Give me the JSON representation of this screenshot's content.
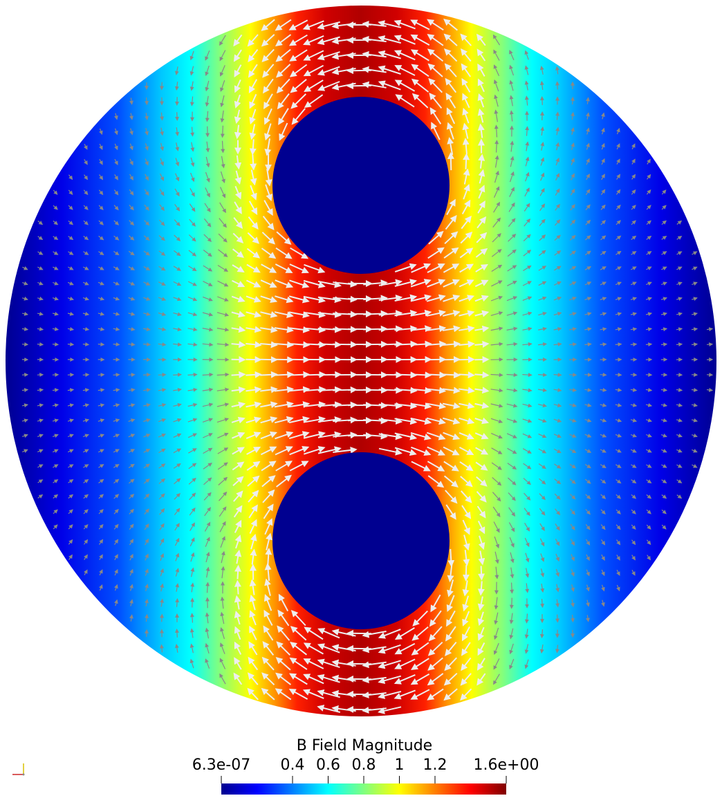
{
  "colorbar": {
    "title": "B Field Magnitude",
    "min_label": "6.3e-07",
    "max_label": "1.6e+00",
    "min_value": 6.3e-07,
    "max_value": 1.6,
    "ticks": [
      {
        "value": 0.4,
        "label": "0.4"
      },
      {
        "value": 0.6,
        "label": "0.6"
      },
      {
        "value": 0.8,
        "label": "0.8"
      },
      {
        "value": 1.0,
        "label": "1"
      },
      {
        "value": 1.2,
        "label": "1.2"
      }
    ],
    "colormap": [
      "#00008f",
      "#0000ff",
      "#00ffff",
      "#ffff00",
      "#ff0000",
      "#800000"
    ]
  },
  "colors": {
    "inner_conductor": "#000090",
    "arrow_light": "#eeeeee",
    "arrow_dark": "#888888",
    "field_low": "#00008f",
    "field_high": "#8b0000"
  }
}
